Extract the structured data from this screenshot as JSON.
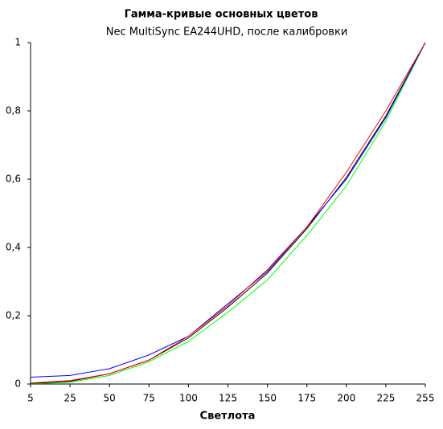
{
  "chart_data": {
    "type": "line",
    "title": "Гамма-кривые  основных цветов",
    "subtitle": "Nec MultiSync  EA244UHD, после калибровки",
    "x_label": "Светлота",
    "categories": [
      "5",
      "25",
      "50",
      "75",
      "100",
      "125",
      "150",
      "175",
      "200",
      "225",
      "255"
    ],
    "series": [
      {
        "color": "#00ff00",
        "values": [
          0.001,
          0.005,
          0.025,
          0.065,
          0.125,
          0.21,
          0.305,
          0.435,
          0.58,
          0.77,
          1
        ]
      },
      {
        "color": "#000000",
        "values": [
          0.002,
          0.008,
          0.03,
          0.07,
          0.135,
          0.225,
          0.325,
          0.455,
          0.605,
          0.785,
          1
        ]
      },
      {
        "color": "#0000ff",
        "values": [
          0.02,
          0.025,
          0.045,
          0.085,
          0.14,
          0.235,
          0.33,
          0.46,
          0.6,
          0.78,
          1
        ]
      },
      {
        "color": "#ff0000",
        "values": [
          0.003,
          0.01,
          0.03,
          0.07,
          0.14,
          0.23,
          0.335,
          0.46,
          0.62,
          0.8,
          1
        ]
      }
    ],
    "ylim": [
      0,
      1
    ],
    "yticks": [
      0,
      {
        "value": 0.2,
        "label": "0,2"
      },
      {
        "value": 0.4,
        "label": "0,4"
      },
      {
        "value": 0.6,
        "label": "0,6"
      },
      {
        "value": 0.8,
        "label": "0,8"
      },
      1
    ],
    "grid": false
  }
}
